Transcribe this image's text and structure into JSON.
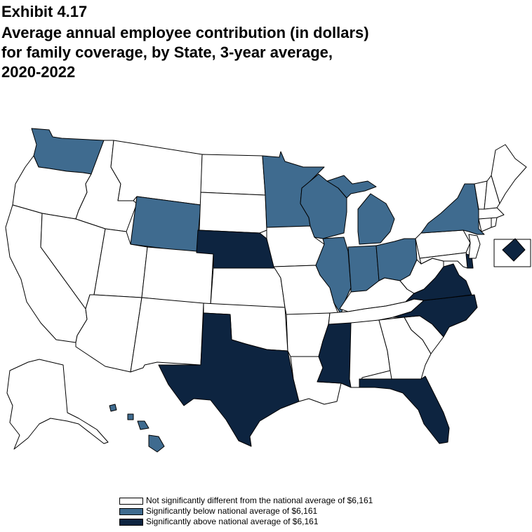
{
  "exhibit_label": "Exhibit 4.17",
  "title_lines": [
    "Average annual employee contribution (in dollars)",
    "for family coverage, by State, 3-year average,",
    "2020-2022"
  ],
  "colors": {
    "not_significant": "#ffffff",
    "below": "#3f6b8f",
    "above": "#0d2440",
    "border": "#000000"
  },
  "legend": [
    {
      "key": "not_significant",
      "label": "Not significantly different from the national average of $6,161"
    },
    {
      "key": "below",
      "label": "Significantly below national average of $6,161"
    },
    {
      "key": "above",
      "label": "Significantly above national average of $6,161"
    }
  ],
  "state_categories": {
    "WA": "below",
    "OR": "not_significant",
    "CA": "not_significant",
    "ID": "not_significant",
    "NV": "not_significant",
    "MT": "not_significant",
    "WY": "below",
    "UT": "not_significant",
    "AZ": "not_significant",
    "CO": "not_significant",
    "NM": "not_significant",
    "ND": "not_significant",
    "SD": "not_significant",
    "NE": "above",
    "KS": "not_significant",
    "OK": "not_significant",
    "TX": "above",
    "MN": "below",
    "IA": "not_significant",
    "MO": "not_significant",
    "AR": "not_significant",
    "LA": "not_significant",
    "WI": "below",
    "IL": "below",
    "MI": "below",
    "IN": "below",
    "OH": "below",
    "KY": "not_significant",
    "TN": "not_significant",
    "MS": "above",
    "AL": "not_significant",
    "GA": "not_significant",
    "FL": "above",
    "SC": "not_significant",
    "NC": "above",
    "VA": "above",
    "WV": "not_significant",
    "PA": "not_significant",
    "NY": "below",
    "MD": "not_significant",
    "DE": "above",
    "NJ": "not_significant",
    "CT": "not_significant",
    "RI": "not_significant",
    "MA": "not_significant",
    "VT": "not_significant",
    "NH": "not_significant",
    "ME": "not_significant",
    "AK": "not_significant",
    "HI": "below",
    "DC": "above"
  }
}
